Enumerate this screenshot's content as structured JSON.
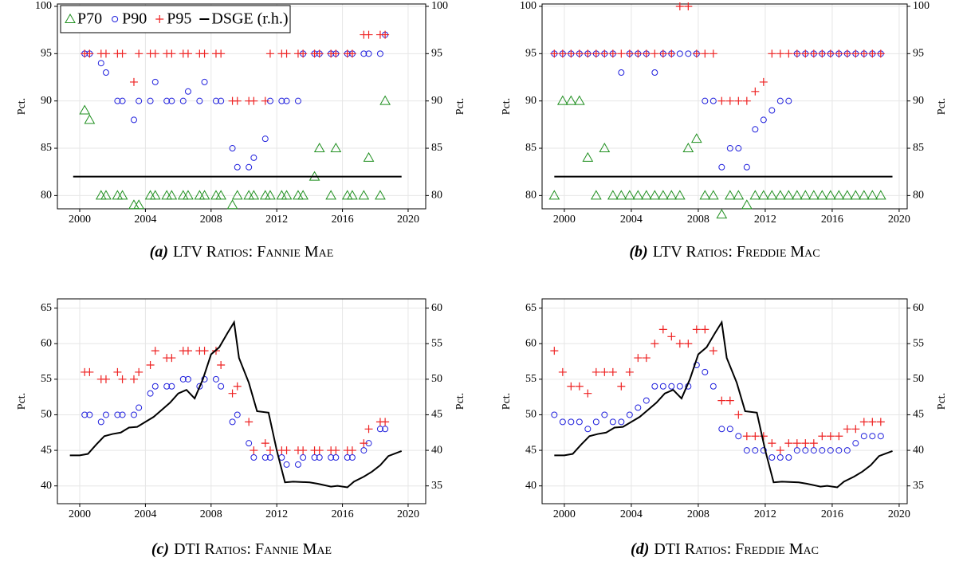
{
  "chart_data": [
    {
      "type": "scatter",
      "label": "(a)",
      "title": "LTV Ratios: Fannie Mae",
      "ylabel": "Pct.",
      "y2label": "Pct.",
      "legend": "upper left",
      "grid": true,
      "xlim": [
        1998.64,
        2021.07
      ],
      "xticks": [
        2000,
        2004,
        2008,
        2012,
        2016,
        2020
      ],
      "ylim": [
        78.6,
        100.25
      ],
      "yticks": [
        80,
        85,
        90,
        95,
        100
      ],
      "y2lim": [
        78.6,
        100.25
      ],
      "y2ticks": [
        80,
        85,
        90,
        95,
        100
      ],
      "x": [
        2000.3,
        2000.6,
        2001.3,
        2001.6,
        2002.3,
        2002.6,
        2003.3,
        2003.6,
        2004.3,
        2004.6,
        2005.3,
        2005.6,
        2006.3,
        2006.6,
        2007.3,
        2007.6,
        2008.3,
        2008.6,
        2009.3,
        2009.6,
        2010.3,
        2010.6,
        2011.3,
        2011.6,
        2012.3,
        2012.6,
        2013.3,
        2013.6,
        2014.3,
        2014.6,
        2015.3,
        2015.6,
        2016.3,
        2016.6,
        2017.3,
        2017.6,
        2018.3,
        2018.6
      ],
      "series": [
        {
          "name": "P70",
          "marker": "triangle",
          "color": "#1f8f1f",
          "values": [
            89,
            88,
            80,
            80,
            80,
            80,
            79,
            79,
            80,
            80,
            80,
            80,
            80,
            80,
            80,
            80,
            80,
            80,
            79,
            80,
            80,
            80,
            80,
            80,
            80,
            80,
            80,
            80,
            82,
            85,
            80,
            85,
            80,
            80,
            80,
            84,
            80,
            90
          ]
        },
        {
          "name": "P90",
          "marker": "circle",
          "color": "#2222dd",
          "values": [
            95,
            95,
            94,
            93,
            90,
            90,
            88,
            90,
            90,
            92,
            90,
            90,
            90,
            91,
            90,
            92,
            90,
            90,
            85,
            83,
            83,
            84,
            86,
            90,
            90,
            90,
            90,
            95,
            95,
            95,
            95,
            95,
            95,
            95,
            95,
            95,
            95,
            97
          ]
        },
        {
          "name": "P95",
          "marker": "plus",
          "color": "#ee2222",
          "values": [
            95,
            95,
            95,
            95,
            95,
            95,
            92,
            95,
            95,
            95,
            95,
            95,
            95,
            95,
            95,
            95,
            95,
            95,
            90,
            90,
            90,
            90,
            90,
            95,
            95,
            95,
            95,
            95,
            95,
            95,
            95,
            95,
            95,
            95,
            97,
            97,
            97,
            97
          ]
        },
        {
          "name": "DSGE (r.h.)",
          "marker": "line",
          "color": "#000000",
          "axis": "y2",
          "x": [
            1999.6,
            2019.6
          ],
          "values": [
            82,
            82
          ]
        }
      ]
    },
    {
      "type": "scatter",
      "label": "(b)",
      "title": "LTV Ratios: Freddie Mac",
      "ylabel": "Pct.",
      "y2label": "Pct.",
      "grid": true,
      "xlim": [
        1998.67,
        2020.48
      ],
      "xticks": [
        2000,
        2004,
        2008,
        2012,
        2016,
        2020
      ],
      "ylim": [
        78.6,
        100.25
      ],
      "yticks": [
        80,
        85,
        90,
        95,
        100
      ],
      "y2lim": [
        78.6,
        100.25
      ],
      "y2ticks": [
        80,
        85,
        90,
        95,
        100
      ],
      "x": [
        1999.4,
        1999.9,
        2000.4,
        2000.9,
        2001.4,
        2001.9,
        2002.4,
        2002.9,
        2003.4,
        2003.9,
        2004.4,
        2004.9,
        2005.4,
        2005.9,
        2006.4,
        2006.9,
        2007.4,
        2007.9,
        2008.4,
        2008.9,
        2009.4,
        2009.9,
        2010.4,
        2010.9,
        2011.4,
        2011.9,
        2012.4,
        2012.9,
        2013.4,
        2013.9,
        2014.4,
        2014.9,
        2015.4,
        2015.9,
        2016.4,
        2016.9,
        2017.4,
        2017.9,
        2018.4,
        2018.9
      ],
      "series": [
        {
          "marker": "triangle",
          "color": "#1f8f1f",
          "values": [
            80,
            90,
            90,
            90,
            84,
            80,
            85,
            80,
            80,
            80,
            80,
            80,
            80,
            80,
            80,
            80,
            85,
            86,
            80,
            80,
            78,
            80,
            80,
            79,
            80,
            80,
            80,
            80,
            80,
            80,
            80,
            80,
            80,
            80,
            80,
            80,
            80,
            80,
            80,
            80
          ]
        },
        {
          "marker": "circle",
          "color": "#2222dd",
          "values": [
            95,
            95,
            95,
            95,
            95,
            95,
            95,
            95,
            93,
            95,
            95,
            95,
            93,
            95,
            95,
            95,
            95,
            95,
            90,
            90,
            83,
            85,
            85,
            83,
            87,
            88,
            89,
            90,
            90,
            95,
            95,
            95,
            95,
            95,
            95,
            95,
            95,
            95,
            95,
            95
          ]
        },
        {
          "marker": "plus",
          "color": "#ee2222",
          "values": [
            95,
            95,
            95,
            95,
            95,
            95,
            95,
            95,
            95,
            95,
            95,
            95,
            95,
            95,
            95,
            100,
            100,
            95,
            95,
            95,
            90,
            90,
            90,
            90,
            91,
            92,
            95,
            95,
            95,
            95,
            95,
            95,
            95,
            95,
            95,
            95,
            95,
            95,
            95,
            95
          ]
        },
        {
          "marker": "line",
          "color": "#000000",
          "axis": "y2",
          "x": [
            1999.4,
            2019.6
          ],
          "values": [
            82,
            82
          ]
        }
      ]
    },
    {
      "type": "scatter",
      "label": "(c)",
      "title": "DTI Ratios: Fannie Mae",
      "ylabel": "Pct.",
      "y2label": "Pct.",
      "grid": true,
      "xlim": [
        1998.64,
        2021.07
      ],
      "xticks": [
        2000,
        2004,
        2008,
        2012,
        2016,
        2020
      ],
      "ylim": [
        37.5,
        66.3
      ],
      "yticks": [
        40,
        45,
        50,
        55,
        60,
        65
      ],
      "y2lim": [
        32.5,
        61.3
      ],
      "y2ticks": [
        35,
        40,
        45,
        50,
        55,
        60
      ],
      "x": [
        2000.3,
        2000.6,
        2001.3,
        2001.6,
        2002.3,
        2002.6,
        2003.3,
        2003.6,
        2004.3,
        2004.6,
        2005.3,
        2005.6,
        2006.3,
        2006.6,
        2007.3,
        2007.6,
        2008.3,
        2008.6,
        2009.3,
        2009.6,
        2010.3,
        2010.6,
        2011.3,
        2011.6,
        2012.3,
        2012.6,
        2013.3,
        2013.6,
        2014.3,
        2014.6,
        2015.3,
        2015.6,
        2016.3,
        2016.6,
        2017.3,
        2017.6,
        2018.3,
        2018.6
      ],
      "series": [
        {
          "marker": "circle",
          "color": "#2222dd",
          "values": [
            50,
            50,
            49,
            50,
            50,
            50,
            50,
            51,
            53,
            54,
            54,
            54,
            55,
            55,
            54,
            55,
            55,
            54,
            49,
            50,
            46,
            44,
            44,
            44,
            44,
            43,
            43,
            44,
            44,
            44,
            44,
            44,
            44,
            44,
            45,
            46,
            48,
            48
          ]
        },
        {
          "marker": "plus",
          "color": "#ee2222",
          "values": [
            56,
            56,
            55,
            55,
            56,
            55,
            55,
            56,
            57,
            59,
            58,
            58,
            59,
            59,
            59,
            59,
            59,
            57,
            53,
            54,
            49,
            45,
            46,
            45,
            45,
            45,
            45,
            45,
            45,
            45,
            45,
            45,
            45,
            45,
            46,
            48,
            49,
            49
          ]
        },
        {
          "marker": "line",
          "color": "#000000",
          "axis": "y2",
          "x": [
            1999.4,
            2000,
            2000.5,
            2001,
            2001.5,
            2002,
            2002.5,
            2003,
            2003.5,
            2004,
            2004.5,
            2005,
            2005.5,
            2006,
            2006.5,
            2007,
            2007.5,
            2008,
            2008.5,
            2009,
            2009.4,
            2009.7,
            2010.3,
            2010.8,
            2011.5,
            2012,
            2012.5,
            2013,
            2014,
            2014.5,
            2015.3,
            2015.7,
            2016.3,
            2016.7,
            2017.3,
            2017.8,
            2018.3,
            2018.8,
            2019.6
          ],
          "values": [
            39.3,
            39.3,
            39.5,
            40.8,
            42,
            42.3,
            42.5,
            43.2,
            43.3,
            44,
            44.7,
            45.7,
            46.7,
            48,
            48.5,
            47.3,
            50,
            53.5,
            54.5,
            56.5,
            58,
            53,
            49.5,
            45.5,
            45.3,
            40,
            35.5,
            35.6,
            35.5,
            35.3,
            34.9,
            35,
            34.8,
            35.6,
            36.3,
            37,
            37.9,
            39.2,
            39.9
          ]
        }
      ]
    },
    {
      "type": "scatter",
      "label": "(d)",
      "title": "DTI Ratios: Freddie Mac",
      "ylabel": "Pct.",
      "y2label": "Pct.",
      "grid": true,
      "xlim": [
        1998.67,
        2020.48
      ],
      "xticks": [
        2000,
        2004,
        2008,
        2012,
        2016,
        2020
      ],
      "ylim": [
        37.5,
        66.3
      ],
      "yticks": [
        40,
        45,
        50,
        55,
        60,
        65
      ],
      "y2lim": [
        32.5,
        61.3
      ],
      "y2ticks": [
        35,
        40,
        45,
        50,
        55,
        60
      ],
      "x": [
        1999.4,
        1999.9,
        2000.4,
        2000.9,
        2001.4,
        2001.9,
        2002.4,
        2002.9,
        2003.4,
        2003.9,
        2004.4,
        2004.9,
        2005.4,
        2005.9,
        2006.4,
        2006.9,
        2007.4,
        2007.9,
        2008.4,
        2008.9,
        2009.4,
        2009.9,
        2010.4,
        2010.9,
        2011.4,
        2011.9,
        2012.4,
        2012.9,
        2013.4,
        2013.9,
        2014.4,
        2014.9,
        2015.4,
        2015.9,
        2016.4,
        2016.9,
        2017.4,
        2017.9,
        2018.4,
        2018.9
      ],
      "series": [
        {
          "marker": "circle",
          "color": "#2222dd",
          "values": [
            50,
            49,
            49,
            49,
            48,
            49,
            50,
            49,
            49,
            50,
            51,
            52,
            54,
            54,
            54,
            54,
            54,
            57,
            56,
            54,
            48,
            48,
            47,
            45,
            45,
            45,
            44,
            44,
            44,
            45,
            45,
            45,
            45,
            45,
            45,
            45,
            46,
            47,
            47,
            47
          ]
        },
        {
          "marker": "plus",
          "color": "#ee2222",
          "values": [
            59,
            56,
            54,
            54,
            53,
            56,
            56,
            56,
            54,
            56,
            58,
            58,
            60,
            62,
            61,
            60,
            60,
            62,
            62,
            59,
            52,
            52,
            50,
            47,
            47,
            47,
            46,
            45,
            46,
            46,
            46,
            46,
            47,
            47,
            47,
            48,
            48,
            49,
            49,
            49
          ]
        },
        {
          "marker": "line",
          "color": "#000000",
          "axis": "y2",
          "x": [
            1999.4,
            2000,
            2000.5,
            2001,
            2001.5,
            2002,
            2002.5,
            2003,
            2003.5,
            2004,
            2004.5,
            2005,
            2005.5,
            2006,
            2006.5,
            2007,
            2007.5,
            2008,
            2008.5,
            2009,
            2009.4,
            2009.7,
            2010.3,
            2010.8,
            2011.5,
            2012,
            2012.5,
            2013,
            2014,
            2014.5,
            2015.3,
            2015.7,
            2016.3,
            2016.7,
            2017.3,
            2017.8,
            2018.3,
            2018.8,
            2019.6
          ],
          "values": [
            39.3,
            39.3,
            39.5,
            40.8,
            42,
            42.3,
            42.5,
            43.2,
            43.3,
            44,
            44.7,
            45.7,
            46.7,
            48,
            48.5,
            47.3,
            50,
            53.5,
            54.5,
            56.5,
            58,
            53,
            49.5,
            45.5,
            45.3,
            40,
            35.5,
            35.6,
            35.5,
            35.3,
            34.9,
            35,
            34.8,
            35.6,
            36.3,
            37,
            37.9,
            39.2,
            39.9
          ]
        }
      ]
    }
  ]
}
